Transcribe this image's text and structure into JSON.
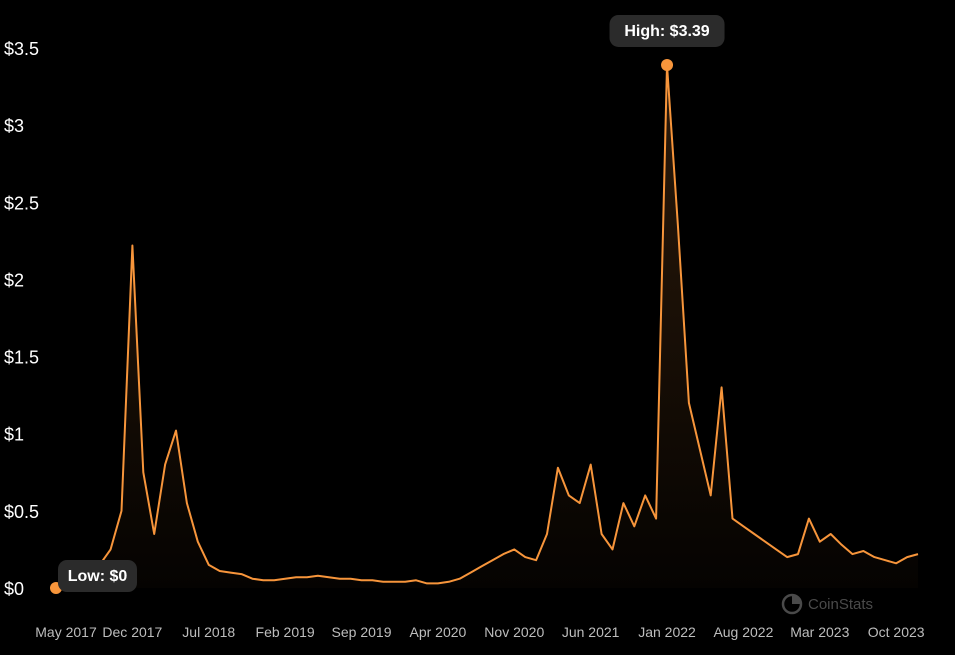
{
  "chart_data": {
    "type": "area",
    "title": "",
    "xlabel": "",
    "ylabel": "",
    "y_tick_labels": [
      "$0",
      "$0.5",
      "$1",
      "$1.5",
      "$2",
      "$2.5",
      "$3",
      "$3.5"
    ],
    "y_ticks": [
      0,
      0.5,
      1,
      1.5,
      2,
      2.5,
      3,
      3.5
    ],
    "ylim": [
      0,
      3.5
    ],
    "x_tick_labels": [
      "May 2017",
      "Dec 2017",
      "Jul 2018",
      "Feb 2019",
      "Sep 2019",
      "Apr 2020",
      "Nov 2020",
      "Jun 2021",
      "Jan 2022",
      "Aug 2022",
      "Mar 2023",
      "Oct 2023"
    ],
    "x_ticks": [
      "2017-05",
      "2017-12",
      "2018-07",
      "2019-02",
      "2019-09",
      "2020-04",
      "2020-11",
      "2021-06",
      "2022-01",
      "2022-08",
      "2023-03",
      "2023-10"
    ],
    "xlim": [
      "2017-05",
      "2023-12"
    ],
    "grid": false,
    "line_color": "#f7953b",
    "series": [
      {
        "x": [
          "2017-05",
          "2017-06",
          "2017-07",
          "2017-08",
          "2017-09",
          "2017-10",
          "2017-11",
          "2017-12",
          "2018-01",
          "2018-02",
          "2018-03",
          "2018-04",
          "2018-05",
          "2018-06",
          "2018-07",
          "2018-08",
          "2018-09",
          "2018-10",
          "2018-11",
          "2018-12",
          "2019-01",
          "2019-02",
          "2019-03",
          "2019-04",
          "2019-05",
          "2019-06",
          "2019-07",
          "2019-08",
          "2019-09",
          "2019-10",
          "2019-11",
          "2019-12",
          "2020-01",
          "2020-02",
          "2020-03",
          "2020-04",
          "2020-05",
          "2020-06",
          "2020-07",
          "2020-08",
          "2020-09",
          "2020-10",
          "2020-11",
          "2020-12",
          "2021-01",
          "2021-02",
          "2021-03",
          "2021-04",
          "2021-05",
          "2021-06",
          "2021-07",
          "2021-08",
          "2021-09",
          "2021-10",
          "2021-11",
          "2021-12",
          "2022-01",
          "2022-02",
          "2022-03",
          "2022-04",
          "2022-05",
          "2022-06",
          "2022-07",
          "2022-08",
          "2022-09",
          "2022-10",
          "2022-11",
          "2022-12",
          "2023-01",
          "2023-02",
          "2023-03",
          "2023-04",
          "2023-05",
          "2023-06",
          "2023-07",
          "2023-08",
          "2023-09",
          "2023-10",
          "2023-11",
          "2023-12"
        ],
        "values": [
          0.0,
          0.02,
          0.04,
          0.08,
          0.15,
          0.25,
          0.5,
          2.22,
          0.75,
          0.35,
          0.8,
          1.02,
          0.55,
          0.3,
          0.15,
          0.11,
          0.1,
          0.09,
          0.06,
          0.05,
          0.05,
          0.06,
          0.07,
          0.07,
          0.08,
          0.07,
          0.06,
          0.06,
          0.05,
          0.05,
          0.04,
          0.04,
          0.04,
          0.05,
          0.03,
          0.03,
          0.04,
          0.06,
          0.1,
          0.14,
          0.18,
          0.22,
          0.25,
          0.2,
          0.18,
          0.35,
          0.78,
          0.6,
          0.55,
          0.8,
          0.35,
          0.25,
          0.55,
          0.4,
          0.6,
          0.45,
          3.39,
          2.35,
          1.2,
          0.9,
          0.6,
          1.3,
          0.45,
          0.4,
          0.35,
          0.3,
          0.25,
          0.2,
          0.22,
          0.45,
          0.3,
          0.35,
          0.28,
          0.22,
          0.24,
          0.2,
          0.18,
          0.16,
          0.2,
          0.22
        ]
      }
    ],
    "annotations": [
      {
        "label": "High: $3.39",
        "x": "2022-01",
        "y": 3.39
      },
      {
        "label": "Low: $0",
        "x": "2017-05",
        "y": 0
      }
    ]
  },
  "watermark": {
    "text": "CoinStats",
    "icon": "coinstats-logo-icon"
  }
}
